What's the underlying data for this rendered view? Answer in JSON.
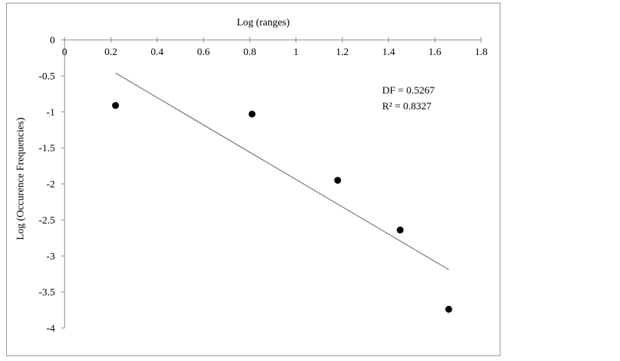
{
  "chart_data": {
    "type": "scatter",
    "xlabel": "Log (ranges)",
    "ylabel": "Log (Occurence Frequencies)",
    "xlim": [
      0,
      1.8
    ],
    "ylim": [
      -4,
      0
    ],
    "x_ticks": [
      "0",
      "0.2",
      "0.4",
      "0.6",
      "0.8",
      "1",
      "1.2",
      "1.4",
      "1.6",
      "1.8"
    ],
    "y_ticks": [
      "0",
      "-0.5",
      "-1",
      "-1.5",
      "-2",
      "-2.5",
      "-3",
      "-3.5",
      "-4"
    ],
    "x_axis_position": "top",
    "grid": false,
    "legend": "none",
    "points": [
      {
        "x": 0.22,
        "y": -0.91
      },
      {
        "x": 0.81,
        "y": -1.03
      },
      {
        "x": 1.18,
        "y": -1.95
      },
      {
        "x": 1.45,
        "y": -2.64
      },
      {
        "x": 1.66,
        "y": -3.74
      }
    ],
    "trendline": {
      "x": [
        0.22,
        1.66
      ],
      "y": [
        -0.46,
        -3.19
      ]
    },
    "annotations": [
      "DF = 0.5267",
      "R² = 0.8327"
    ],
    "colors": {
      "points": "#000000",
      "trendline": "#6f6f6f",
      "axes": "#808080"
    }
  }
}
